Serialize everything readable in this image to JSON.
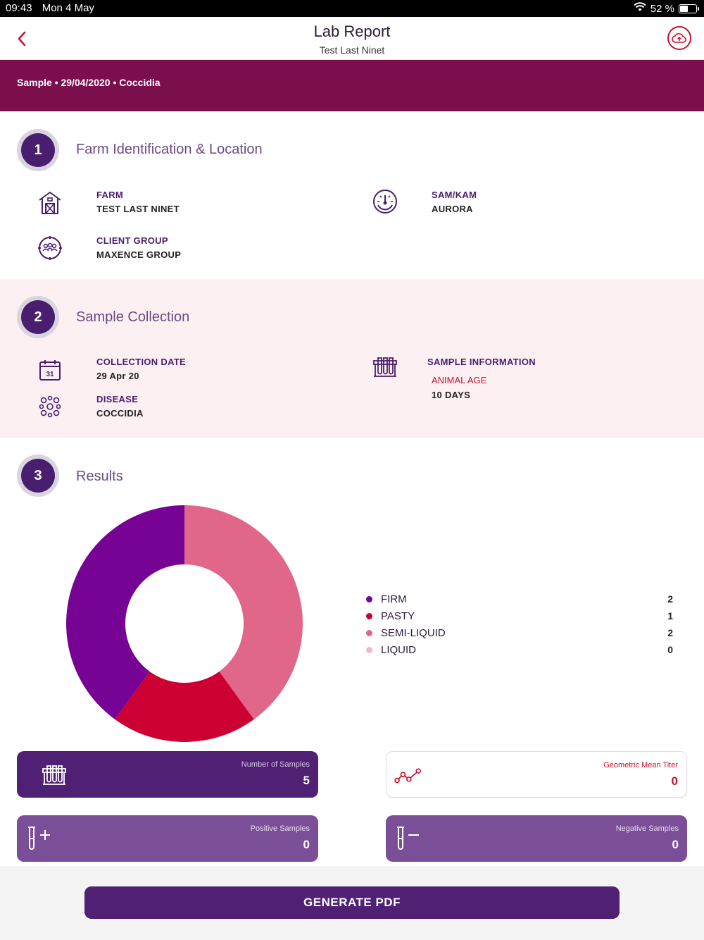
{
  "status_bar": {
    "time": "09:43",
    "date": "Mon 4 May",
    "battery": "52 %",
    "battery_level": 0.52
  },
  "nav": {
    "title": "Lab Report",
    "subtitle": "Test Last Ninet"
  },
  "banner": {
    "text": "Sample • 29/04/2020 • Coccidia"
  },
  "section1": {
    "number": "1",
    "title": "Farm Identification & Location",
    "farm": {
      "label": "FARM",
      "value": "TEST LAST NINET",
      "icon": "barn-icon"
    },
    "sam_kam": {
      "label": "SAM/KAM",
      "value": "AURORA",
      "icon": "dashboard-icon"
    },
    "client_group": {
      "label": "CLIENT GROUP",
      "value": "MAXENCE GROUP",
      "icon": "group-icon"
    }
  },
  "section2": {
    "number": "2",
    "title": "Sample Collection",
    "collection_date": {
      "label": "COLLECTION DATE",
      "value": "29 Apr 20",
      "icon": "calendar-icon",
      "icon_text": "31"
    },
    "disease": {
      "label": "DISEASE",
      "value": "COCCIDIA",
      "icon": "virus-icon"
    },
    "sample_info": {
      "label": "SAMPLE INFORMATION",
      "sub_label": "ANIMAL AGE",
      "value": "10 DAYS",
      "icon": "test-tubes-icon"
    }
  },
  "section3": {
    "number": "3",
    "title": "Results"
  },
  "chart_data": {
    "type": "pie",
    "categories": [
      "FIRM",
      "PASTY",
      "SEMI-LIQUID",
      "LIQUID"
    ],
    "values": [
      2,
      1,
      2,
      0
    ],
    "colors": [
      "#760393",
      "#cc0033",
      "#e0678a",
      "#f4b6c8"
    ]
  },
  "cards": {
    "samples": {
      "title": "Number of Samples",
      "value": "5",
      "icon": "test-tubes-icon"
    },
    "gmt": {
      "title": "Geometric Mean Titer",
      "value": "0",
      "icon": "line-graph-icon"
    },
    "positive": {
      "title": "Positive Samples",
      "value": "0",
      "icon": "tube-plus-icon"
    },
    "negative": {
      "title": "Negative Samples",
      "value": "0",
      "icon": "tube-minus-icon"
    }
  },
  "footer": {
    "button_label": "GENERATE PDF"
  },
  "colors": {
    "brand_purple": "#4f2073",
    "banner": "#7b0f4d",
    "accent_red": "#c8102e"
  }
}
